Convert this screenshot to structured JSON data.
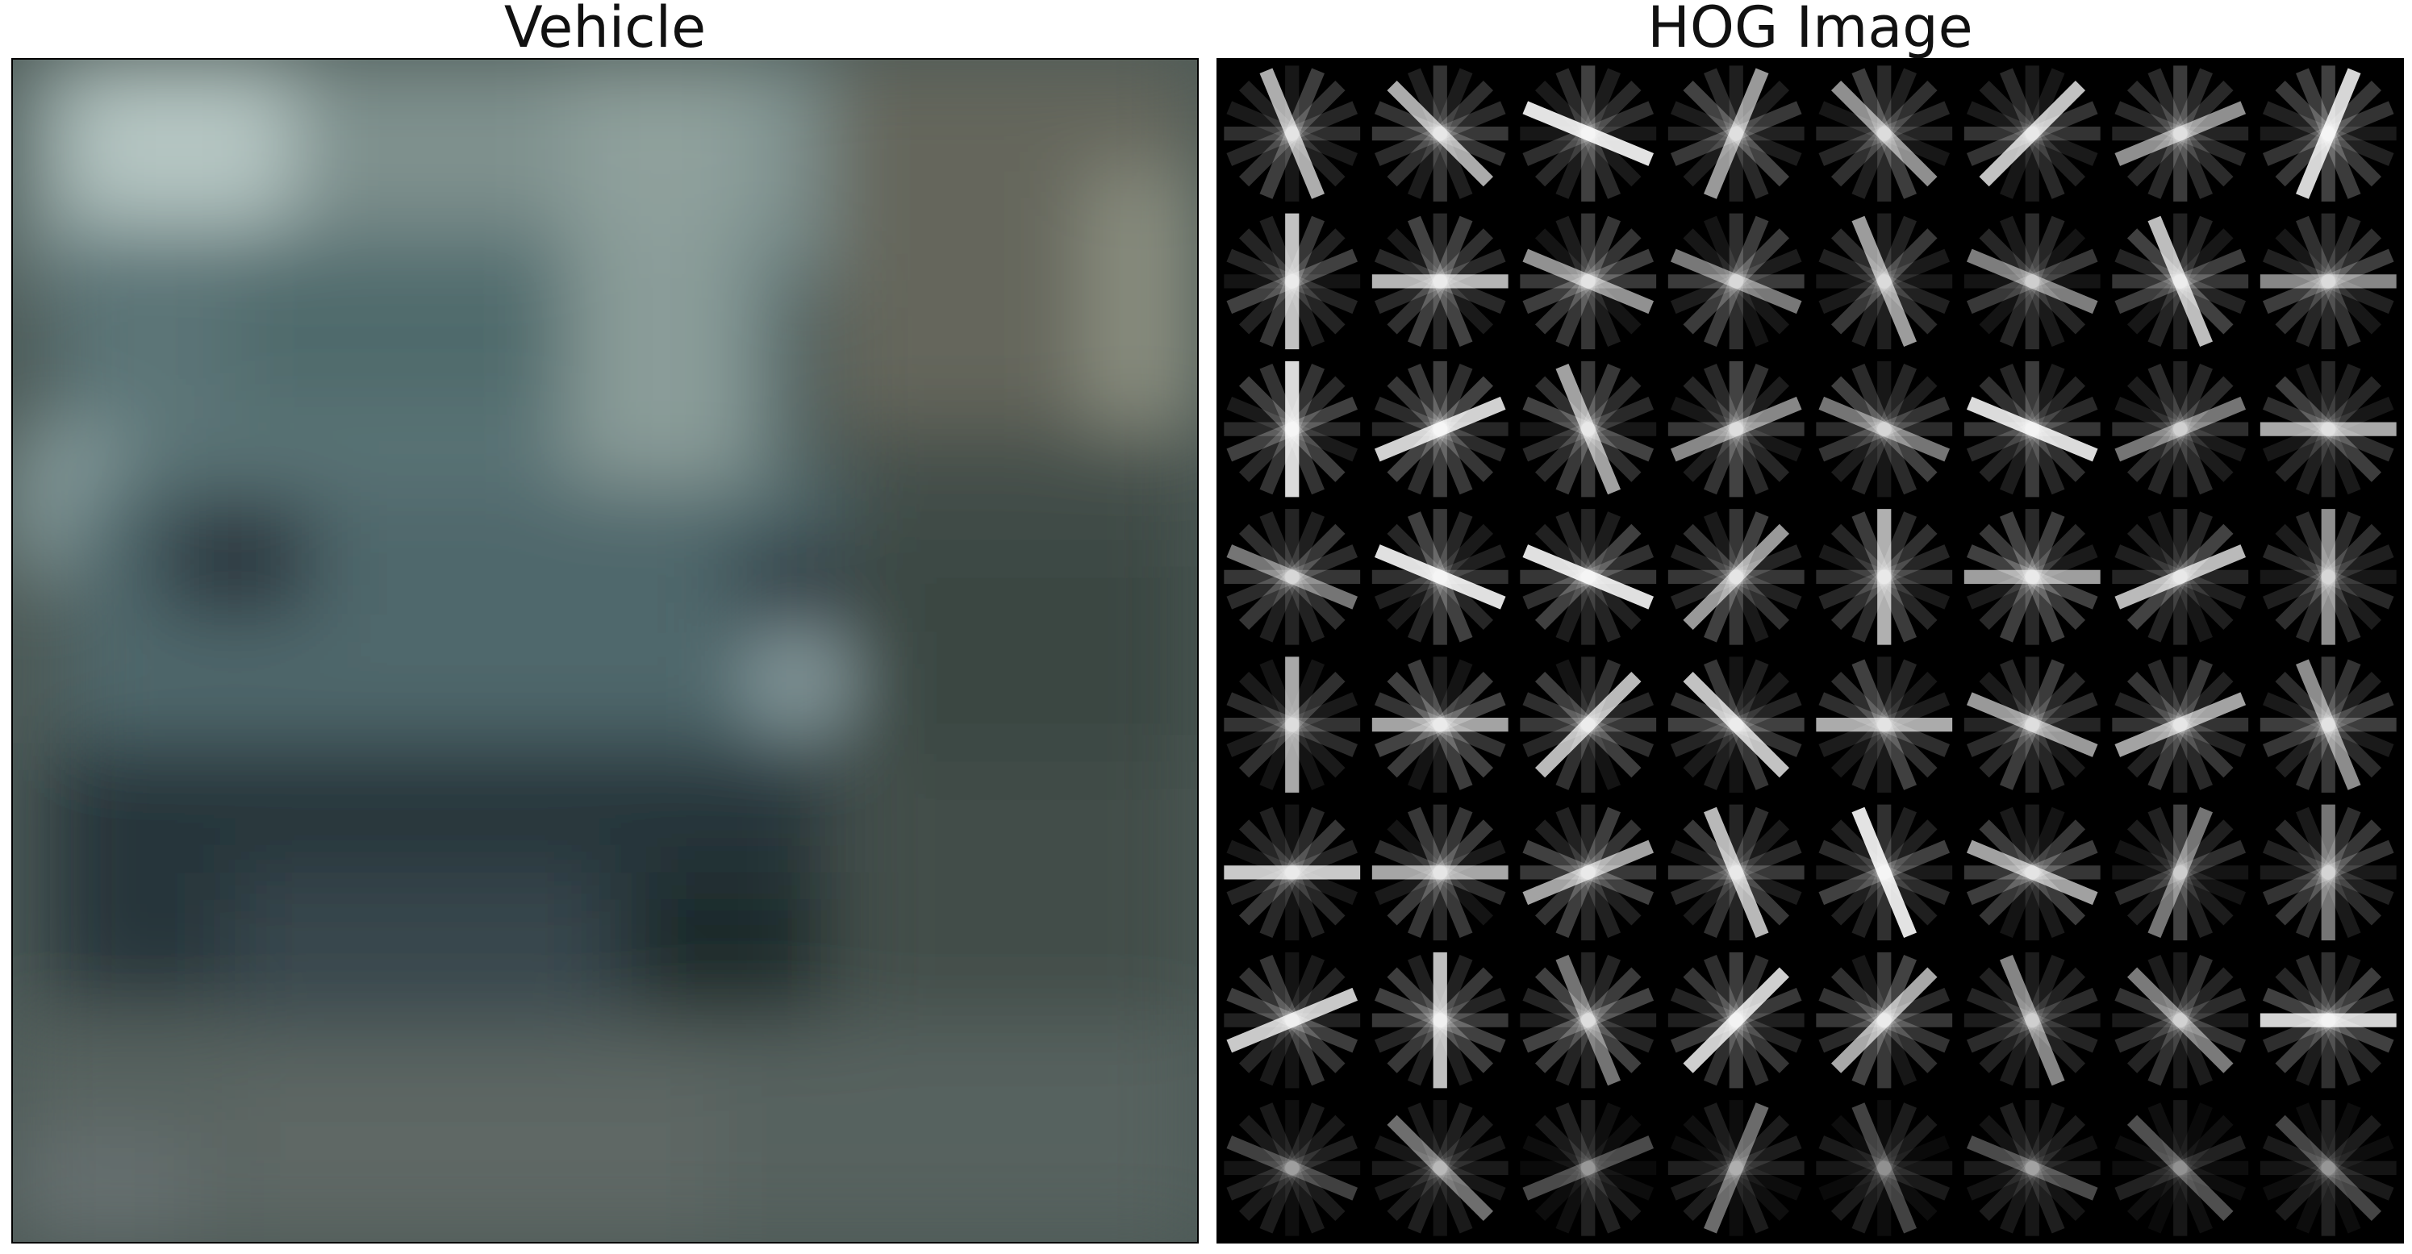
{
  "figure": {
    "left_title": "Vehicle",
    "right_title": "HOG Image"
  },
  "left_image": {
    "subject": "blurred low-resolution car photograph",
    "palette": {
      "sky": "#a9b8b6",
      "car_body": "#4f6a6e",
      "shadow": "#1f2b2e",
      "road": "#55615f",
      "right_bg": "#6a6a5c"
    }
  },
  "hog_image": {
    "cell_grid": [
      8,
      8
    ],
    "background": "#000000",
    "stroke_color": "#ffffff"
  }
}
